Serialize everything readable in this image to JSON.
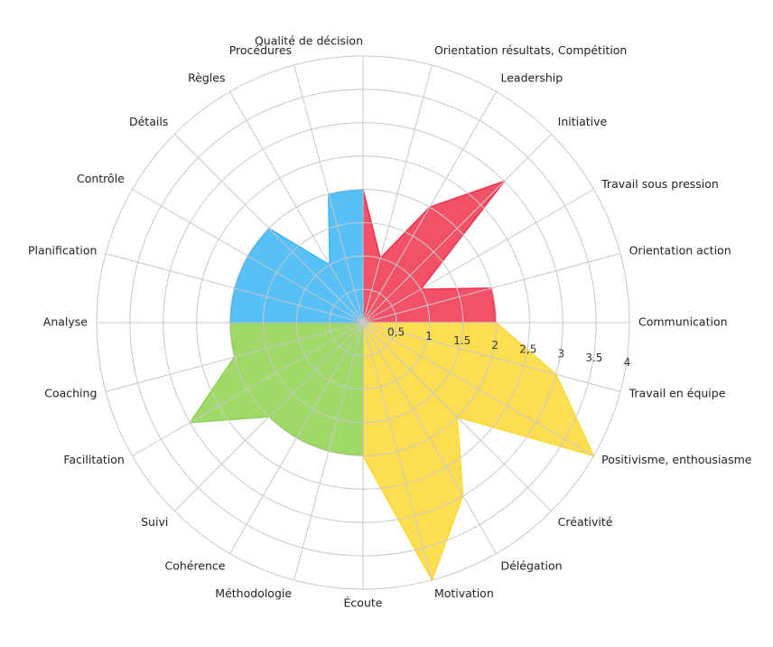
{
  "chart_data": {
    "type": "polar",
    "categories": [
      "Qualité de décision",
      "Orientation résultats, Compétition",
      "Leadership",
      "Initiative",
      "Travail sous pression",
      "Orientation action",
      "Communication",
      "Travail en équipe",
      "Positivisme, enthousiasme",
      "Créativité",
      "Délégation",
      "Motivation",
      "Écoute",
      "Méthodologie",
      "Cohérence",
      "Suivi",
      "Facilitation",
      "Coaching",
      "Analyse",
      "Planification",
      "Contrôle",
      "Détails",
      "Règles",
      "Procédures"
    ],
    "series": [
      {
        "color": "#f0324e",
        "values": [
          2,
          1,
          2,
          3,
          1,
          2,
          null,
          null,
          null,
          null,
          null,
          null,
          null,
          null,
          null,
          null,
          null,
          null,
          null,
          null,
          null,
          null,
          null,
          null
        ]
      },
      {
        "color": "#fdd835",
        "values": [
          null,
          null,
          null,
          null,
          null,
          null,
          2,
          3,
          4,
          2,
          3,
          4,
          null,
          null,
          null,
          null,
          null,
          null,
          null,
          null,
          null,
          null,
          null,
          null
        ]
      },
      {
        "color": "#8ed34f",
        "values": [
          null,
          null,
          null,
          null,
          null,
          null,
          null,
          null,
          null,
          null,
          null,
          null,
          2,
          2,
          2,
          2,
          3,
          2,
          null,
          null,
          null,
          null,
          null,
          null
        ]
      },
      {
        "color": "#39b6f6",
        "values": [
          null,
          null,
          null,
          null,
          null,
          null,
          null,
          null,
          null,
          null,
          null,
          null,
          null,
          null,
          null,
          null,
          null,
          null,
          2,
          2,
          2,
          2,
          1,
          2
        ]
      }
    ],
    "rlim": [
      0,
      4
    ],
    "rticks": [
      {
        "value": 0.5,
        "label": "0,5"
      },
      1,
      {
        "value": 1.5,
        "label": "1.5"
      },
      2,
      {
        "value": 2.5,
        "label": "2,5"
      },
      3,
      {
        "value": 3.5,
        "label": "3.5"
      },
      4
    ]
  }
}
